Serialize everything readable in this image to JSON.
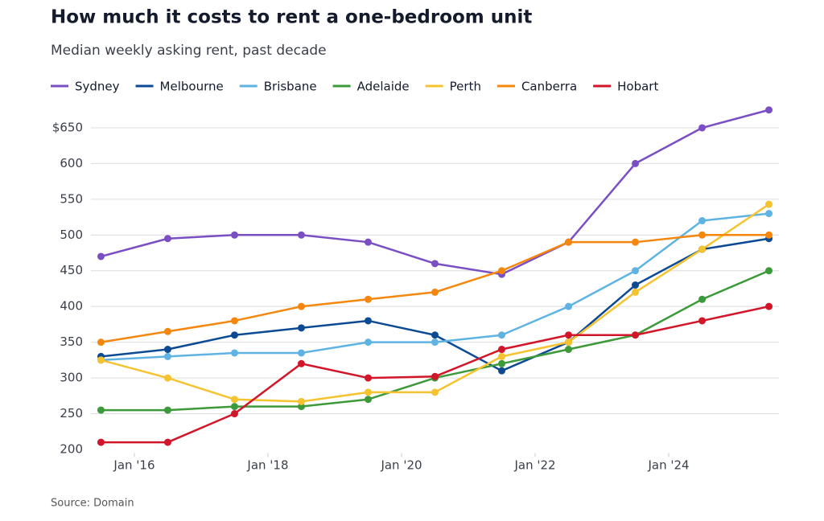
{
  "chart_data": {
    "type": "line",
    "title": "How much it costs to rent a one-bedroom unit",
    "subtitle": "Median weekly asking rent, past decade",
    "source": "Source: Domain",
    "x": [
      2015.5,
      2016.5,
      2017.5,
      2018.5,
      2019.5,
      2020.5,
      2021.5,
      2022.5,
      2023.5,
      2024.5,
      2025.5
    ],
    "xlim": [
      2015.35,
      2025.65
    ],
    "xticks": [
      {
        "value": 2016,
        "label": "Jan '16"
      },
      {
        "value": 2018,
        "label": "Jan '18"
      },
      {
        "value": 2020,
        "label": "Jan '20"
      },
      {
        "value": 2022,
        "label": "Jan '22"
      },
      {
        "value": 2024,
        "label": "Jan '24"
      }
    ],
    "ylim": [
      195,
      680
    ],
    "yticks": [
      200,
      250,
      300,
      350,
      400,
      450,
      500,
      550,
      600,
      {
        "value": 650,
        "label": "$650"
      }
    ],
    "grid": true,
    "series": [
      {
        "name": "Sydney",
        "color": "#7b4fc4",
        "values": [
          470,
          495,
          500,
          500,
          490,
          460,
          445,
          490,
          600,
          650,
          675
        ]
      },
      {
        "name": "Melbourne",
        "color": "#0d4a94",
        "values": [
          330,
          340,
          360,
          370,
          380,
          360,
          310,
          350,
          430,
          480,
          495
        ]
      },
      {
        "name": "Brisbane",
        "color": "#5fb3e3",
        "values": [
          325,
          330,
          335,
          335,
          350,
          350,
          360,
          400,
          450,
          520,
          530
        ]
      },
      {
        "name": "Adelaide",
        "color": "#3d9a3a",
        "values": [
          255,
          255,
          260,
          260,
          270,
          300,
          320,
          340,
          360,
          410,
          450
        ]
      },
      {
        "name": "Perth",
        "color": "#f5c330",
        "values": [
          325,
          300,
          270,
          267,
          280,
          280,
          330,
          350,
          420,
          480,
          543
        ]
      },
      {
        "name": "Canberra",
        "color": "#f5870f",
        "values": [
          350,
          365,
          380,
          400,
          410,
          420,
          450,
          490,
          490,
          500,
          500
        ]
      },
      {
        "name": "Hobart",
        "color": "#d2162a",
        "values": [
          210,
          210,
          250,
          320,
          300,
          302,
          340,
          360,
          360,
          380,
          400
        ]
      }
    ]
  }
}
